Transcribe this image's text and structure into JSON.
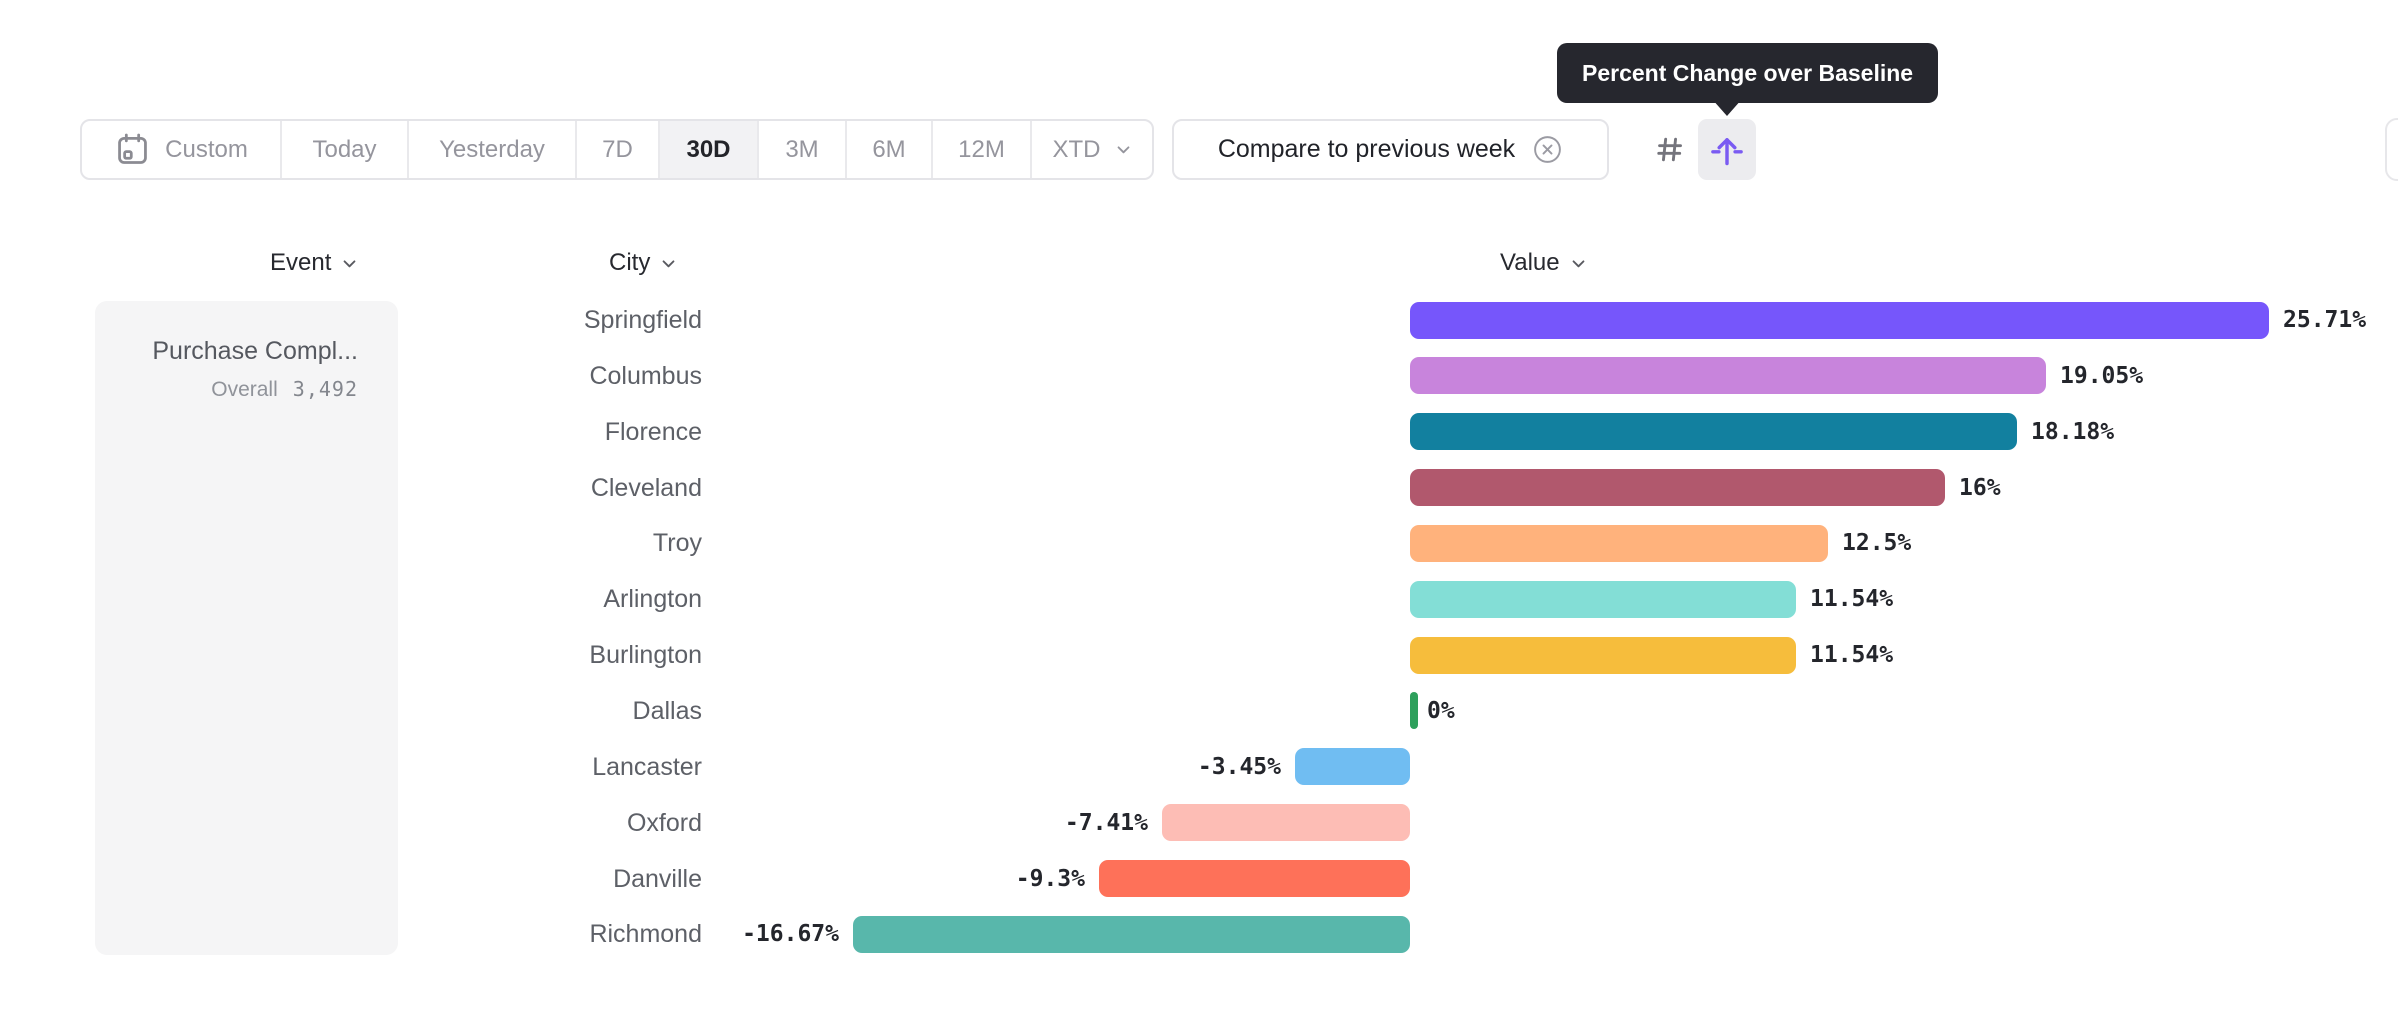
{
  "tooltip": {
    "text": "Percent Change over Baseline"
  },
  "toolbar": {
    "ranges": [
      {
        "label": "Custom",
        "icon": "calendar-icon",
        "selected": false
      },
      {
        "label": "Today",
        "selected": false
      },
      {
        "label": "Yesterday",
        "selected": false
      },
      {
        "label": "7D",
        "selected": false
      },
      {
        "label": "30D",
        "selected": true
      },
      {
        "label": "3M",
        "selected": false
      },
      {
        "label": "6M",
        "selected": false
      },
      {
        "label": "12M",
        "selected": false
      },
      {
        "label": "XTD",
        "selected": false,
        "has_dropdown": true
      }
    ],
    "compare_chip": {
      "label": "Compare to previous week",
      "icon": "close-circle-icon"
    },
    "view_toggles": [
      {
        "icon": "number-sign-icon",
        "selected": false
      },
      {
        "icon": "percent-change-icon",
        "selected": true,
        "tooltip": "Percent Change over Baseline"
      }
    ]
  },
  "columns": [
    {
      "label": "Event",
      "icon": "chevron-down-icon"
    },
    {
      "label": "City",
      "icon": "chevron-down-icon"
    },
    {
      "label": "Value",
      "icon": "chevron-down-icon"
    }
  ],
  "event_panel": {
    "event_name": "Purchase Compl...",
    "overall_label": "Overall",
    "overall_value": "3,492"
  },
  "chart_data": {
    "type": "bar",
    "orientation": "horizontal",
    "value_format": "percent",
    "baseline": 0,
    "xlim": [
      -16.67,
      25.71
    ],
    "categories": [
      "Springfield",
      "Columbus",
      "Florence",
      "Cleveland",
      "Troy",
      "Arlington",
      "Burlington",
      "Dallas",
      "Lancaster",
      "Oxford",
      "Danville",
      "Richmond"
    ],
    "values": [
      25.71,
      19.05,
      18.18,
      16,
      12.5,
      11.54,
      11.54,
      0,
      -3.45,
      -7.41,
      -9.3,
      -16.67
    ],
    "labels": [
      "25.71%",
      "19.05%",
      "18.18%",
      "16%",
      "12.5%",
      "11.54%",
      "11.54%",
      "0%",
      "-3.45%",
      "-7.41%",
      "-9.3%",
      "-16.67%"
    ],
    "colors": [
      "#7656FB",
      "#C884DC",
      "#12809F",
      "#B1586D",
      "#FFB27C",
      "#83DED6",
      "#F6BD3C",
      "#2EA05C",
      "#70BDF2",
      "#FDBDB5",
      "#FE7159",
      "#58B7AB"
    ]
  },
  "ui_colors": {
    "accent_purple": "#7A5BF2",
    "tooltip_bg": "#26272E",
    "border": "#E4E4E8",
    "selected_cell_bg": "#F2F2F4",
    "panel_bg": "#F5F5F6",
    "muted_text": "#95959D",
    "dark_text": "#24262C",
    "city_text": "#5D6067"
  }
}
